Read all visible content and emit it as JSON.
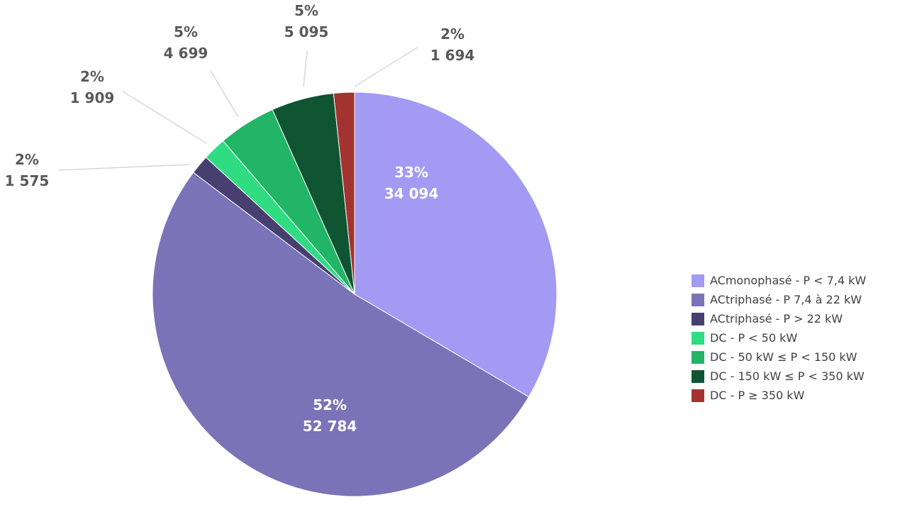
{
  "chart_data": {
    "type": "pie",
    "categories": [
      "ACmonophasé - P < 7,4 kW",
      "ACtriphasé - P 7,4 à 22 kW",
      "ACtriphasé - P > 22 kW",
      "DC - P < 50 kW",
      "DC - 50 kW ≤ P < 150 kW",
      "DC - 150 kW  ≤ P < 350 kW",
      "DC - P ≥ 350 kW"
    ],
    "values": [
      34094,
      52784,
      1575,
      1909,
      4699,
      5095,
      1694
    ],
    "percent_labels": [
      "33%",
      "52%",
      "2%",
      "2%",
      "5%",
      "5%",
      "2%"
    ],
    "value_labels": [
      "34 094",
      "52 784",
      "1 575",
      "1 909",
      "4 699",
      "5 095",
      "1 694"
    ],
    "colors": [
      "#a29af3",
      "#7b73b8",
      "#483f71",
      "#2fdc82",
      "#22b467",
      "#0f5532",
      "#a33331"
    ],
    "legend_position": "right"
  }
}
